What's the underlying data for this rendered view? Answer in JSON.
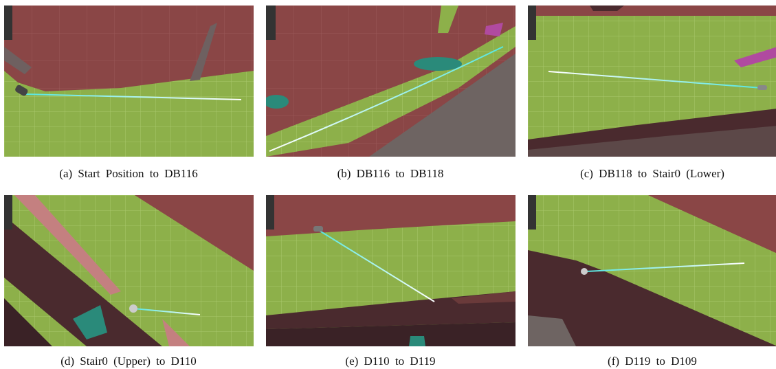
{
  "panels": [
    {
      "caption": "(a) Start Position to DB116"
    },
    {
      "caption": "(b) DB116 to DB118"
    },
    {
      "caption": "(c) DB118 to Stair0 (Lower)"
    },
    {
      "caption": "(d) Stair0 (Upper) to D110"
    },
    {
      "caption": "(e) D110 to D119"
    },
    {
      "caption": "(f) D119 to D109"
    }
  ]
}
